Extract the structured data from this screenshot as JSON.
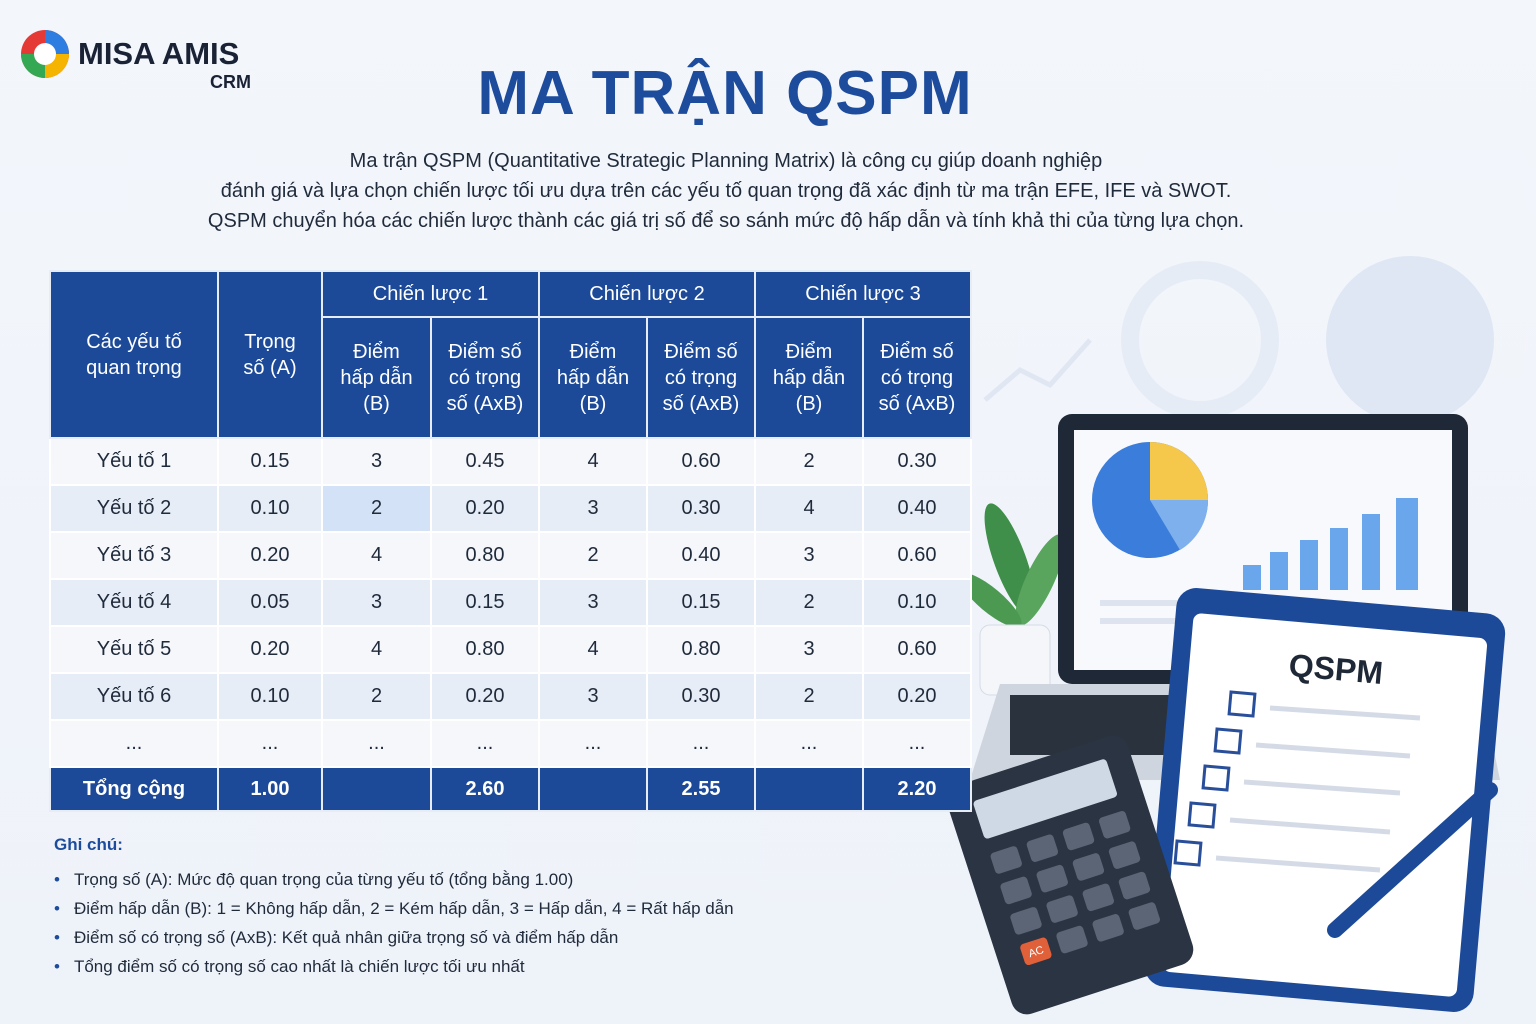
{
  "logo": {
    "name": "MISA AMIS",
    "sub": "CRM"
  },
  "header": {
    "title": "MA TRẬN QSPM",
    "description": [
      "Ma trận QSPM (Quantitative Strategic Planning Matrix) là công cụ giúp doanh nghiệp",
      "đánh giá và lựa chọn chiến lược tối ưu dựa trên các yếu tố quan trọng đã xác định từ ma trận EFE, IFE và SWOT.",
      "QSPM chuyển hóa các chiến lược thành các giá trị số để so sánh mức độ hấp dẫn và tính khả thi của từng lựa chọn."
    ]
  },
  "table": {
    "header": {
      "factor": "Các yếu tố quan trọng",
      "weight": "Trọng số (A)",
      "strategies": [
        "Chiến lược 1",
        "Chiến lược 2",
        "Chiến lược 3"
      ],
      "subcolumns": [
        "Điểm hấp dẫn (B)",
        "Điểm số có trọng số (AxB)"
      ]
    },
    "rows": [
      [
        "Yếu tố 1",
        "0.15",
        "3",
        "0.45",
        "4",
        "0.60",
        "2",
        "0.30"
      ],
      [
        "Yếu tố 2",
        "0.10",
        "2",
        "0.20",
        "3",
        "0.30",
        "4",
        "0.40"
      ],
      [
        "Yếu tố 3",
        "0.20",
        "4",
        "0.80",
        "2",
        "0.40",
        "3",
        "0.60"
      ],
      [
        "Yếu tố 4",
        "0.05",
        "3",
        "0.15",
        "3",
        "0.15",
        "2",
        "0.10"
      ],
      [
        "Yếu tố 5",
        "0.20",
        "4",
        "0.80",
        "4",
        "0.80",
        "3",
        "0.60"
      ],
      [
        "Yếu tố 6",
        "0.10",
        "2",
        "0.20",
        "3",
        "0.30",
        "2",
        "0.20"
      ],
      [
        "...",
        "...",
        "...",
        "...",
        "...",
        "...",
        "...",
        "..."
      ]
    ],
    "total": {
      "label": "Tổng cộng",
      "weight": "1.00",
      "scores": [
        "2.60",
        "2.55",
        "2.20"
      ]
    }
  },
  "notes": {
    "title": "Ghi chú:",
    "items": [
      "Trọng số (A): Mức độ quan trọng của từng yếu tố (tổng bằng 1.00)",
      "Điểm hấp dẫn (B): 1 = Không hấp dẫn, 2 = Kém hấp dẫn, 3 = Hấp dẫn, 4 = Rất hấp dẫn",
      "Điểm số có trọng số (AxB): Kết quả nhân giữa trọng số và điểm hấp dẫn",
      "Tổng điểm số có trọng số cao nhất là chiến lược tối ưu nhất"
    ]
  },
  "illustration": {
    "clipboard_title": "QSPM",
    "calculator_key": "AC"
  }
}
